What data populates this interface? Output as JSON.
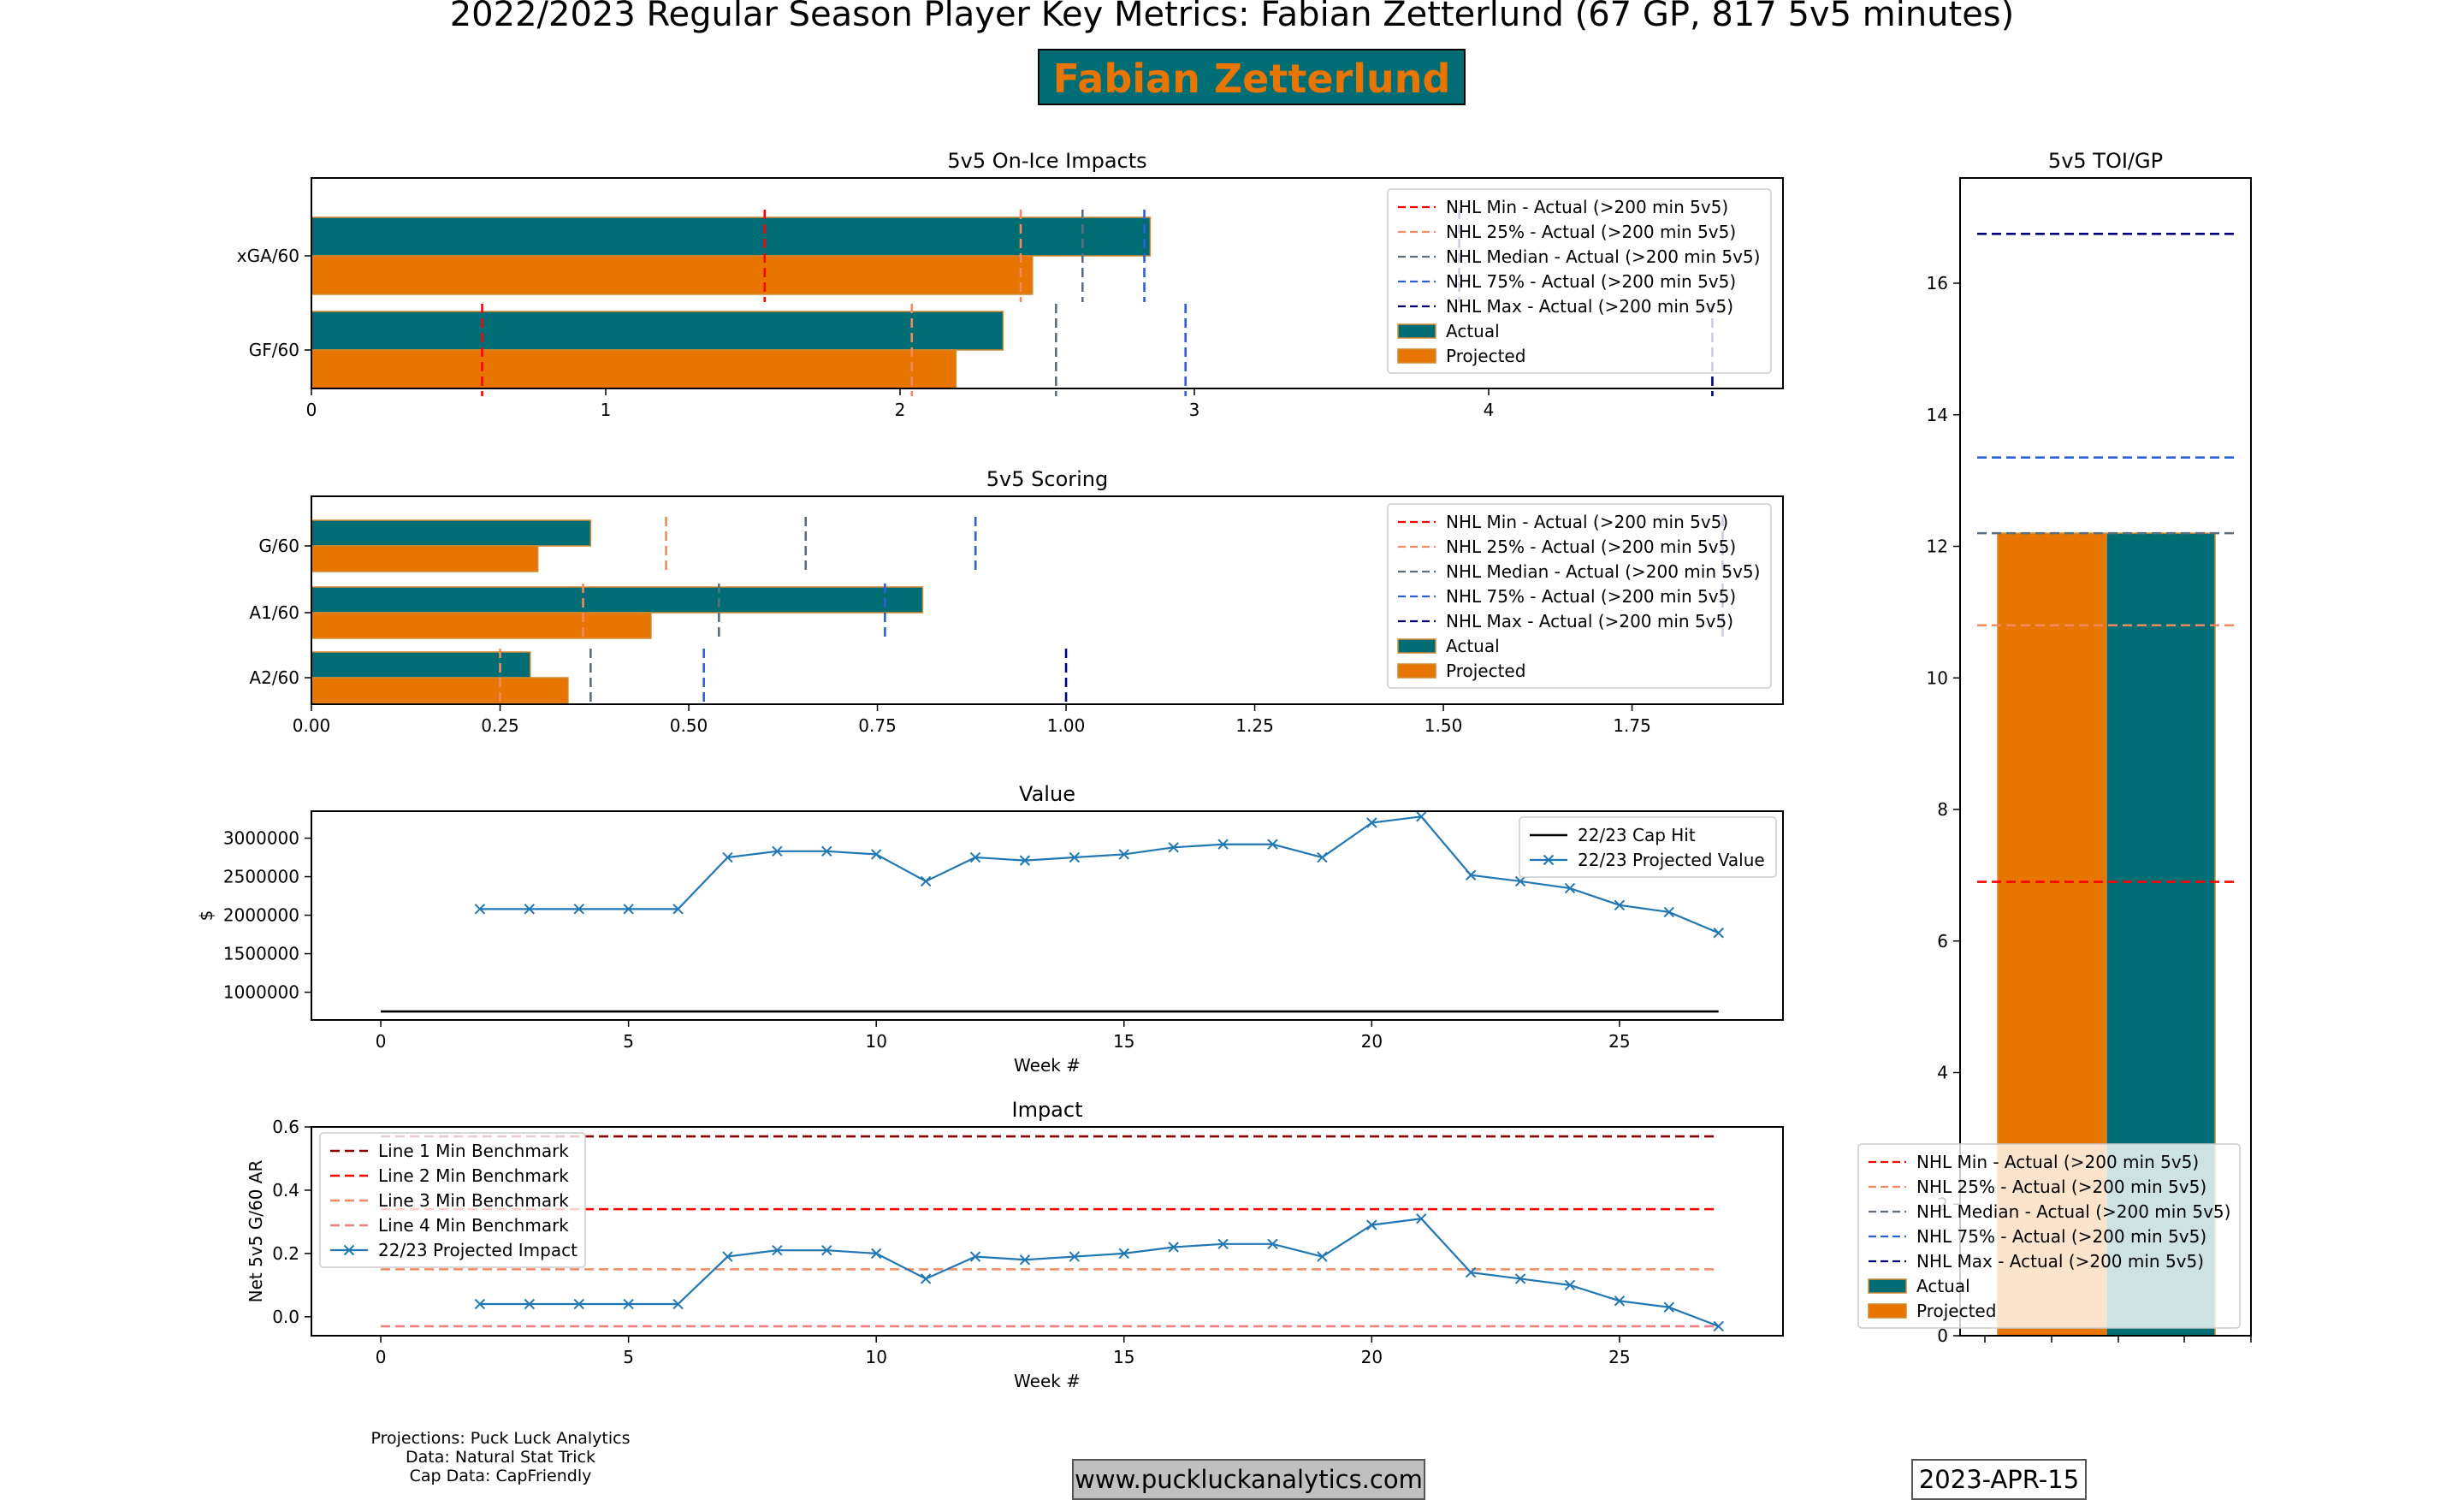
{
  "header": {
    "title": "2022/2023 Regular Season Player Key Metrics: Fabian Zetterlund (67 GP, 817 5v5 minutes)",
    "player_name": "Fabian Zetterlund"
  },
  "footer": {
    "credits": [
      "Projections: Puck Luck Analytics",
      "Data: Natural Stat Trick",
      "Cap Data: CapFriendly"
    ],
    "website": "www.puckluckanalytics.com",
    "date": "2023-APR-15"
  },
  "colors": {
    "actual": "#006d75",
    "projected": "#e87500",
    "bar_edge": "#d08a30",
    "nhl_min": "#ff0000",
    "nhl_25": "#f4895f",
    "nhl_median": "#5d6d7e",
    "nhl_75": "#2c5fdc",
    "nhl_max": "#00007a",
    "projection_line": "#1f77b4",
    "cap_hit": "#000000",
    "line1": "#8b0000",
    "line2": "#ff0000",
    "line3": "#f4895f",
    "line4": "#f08080"
  },
  "chart_data": [
    {
      "id": "onice",
      "type": "bar",
      "orientation": "horizontal",
      "title": "5v5 On-Ice Impacts",
      "categories": [
        "xGA/60",
        "GF/60"
      ],
      "series": [
        {
          "name": "Actual",
          "values": [
            2.85,
            2.35
          ]
        },
        {
          "name": "Projected",
          "values": [
            2.45,
            2.19
          ]
        }
      ],
      "benchmarks": [
        {
          "name": "NHL Min - Actual (>200 min 5v5)",
          "values": [
            1.54,
            0.58
          ]
        },
        {
          "name": "NHL 25% - Actual (>200 min 5v5)",
          "values": [
            2.41,
            2.04
          ]
        },
        {
          "name": "NHL Median - Actual (>200 min 5v5)",
          "values": [
            2.62,
            2.53
          ]
        },
        {
          "name": "NHL 75% - Actual (>200 min 5v5)",
          "values": [
            2.83,
            2.97
          ]
        },
        {
          "name": "NHL Max - Actual (>200 min 5v5)",
          "values": [
            3.9,
            4.76
          ]
        }
      ],
      "xlim": [
        0,
        5
      ],
      "xticks": [
        "0",
        "1",
        "2",
        "3",
        "4"
      ],
      "xtick_values": [
        0,
        1,
        2,
        3,
        4
      ],
      "legend": "upper right"
    },
    {
      "id": "scoring",
      "type": "bar",
      "orientation": "horizontal",
      "title": "5v5 Scoring",
      "categories": [
        "G/60",
        "A1/60",
        "A2/60"
      ],
      "series": [
        {
          "name": "Actual",
          "values": [
            0.37,
            0.81,
            0.29
          ]
        },
        {
          "name": "Projected",
          "values": [
            0.3,
            0.45,
            0.34
          ]
        }
      ],
      "benchmarks": [
        {
          "name": "NHL Min - Actual (>200 min 5v5)",
          "values": [
            0.0,
            0.0,
            0.0
          ]
        },
        {
          "name": "NHL 25% - Actual (>200 min 5v5)",
          "values": [
            0.47,
            0.36,
            0.25
          ]
        },
        {
          "name": "NHL Median - Actual (>200 min 5v5)",
          "values": [
            0.655,
            0.54,
            0.37
          ]
        },
        {
          "name": "NHL 75% - Actual (>200 min 5v5)",
          "values": [
            0.88,
            0.76,
            0.52
          ]
        },
        {
          "name": "NHL Max - Actual (>200 min 5v5)",
          "values": [
            1.87,
            1.87,
            1.0
          ]
        }
      ],
      "xlim": [
        0,
        1.95
      ],
      "xticks": [
        "0.00",
        "0.25",
        "0.50",
        "0.75",
        "1.00",
        "1.25",
        "1.50",
        "1.75"
      ],
      "xtick_values": [
        0,
        0.25,
        0.5,
        0.75,
        1.0,
        1.25,
        1.5,
        1.75
      ],
      "legend": "upper right"
    },
    {
      "id": "value",
      "type": "line",
      "title": "Value",
      "xlabel": "Week #",
      "ylabel": "$",
      "x": [
        2,
        3,
        4,
        5,
        6,
        7,
        8,
        9,
        10,
        11,
        12,
        13,
        14,
        15,
        16,
        17,
        18,
        19,
        20,
        21,
        22,
        23,
        24,
        25,
        26,
        27
      ],
      "series": [
        {
          "name": "22/23 Cap Hit",
          "x": [
            0,
            27
          ],
          "values": [
            750000,
            750000
          ]
        },
        {
          "name": "22/23 Projected Value",
          "values": [
            2080000,
            2080000,
            2080000,
            2080000,
            2080000,
            2750000,
            2830000,
            2830000,
            2790000,
            2440000,
            2750000,
            2710000,
            2750000,
            2790000,
            2880000,
            2920000,
            2920000,
            2750000,
            3200000,
            3280000,
            2520000,
            2440000,
            2350000,
            2130000,
            2040000,
            1770000
          ]
        }
      ],
      "xlim": [
        -1.4,
        28.3
      ],
      "ylim": [
        640000,
        3350000
      ],
      "xticks": [
        "0",
        "5",
        "10",
        "15",
        "20",
        "25"
      ],
      "xtick_values": [
        0,
        5,
        10,
        15,
        20,
        25
      ],
      "yticks": [
        "1000000",
        "1500000",
        "2000000",
        "2500000",
        "3000000"
      ],
      "ytick_values": [
        1000000,
        1500000,
        2000000,
        2500000,
        3000000
      ],
      "legend": "upper right"
    },
    {
      "id": "impact",
      "type": "line",
      "title": "Impact",
      "xlabel": "Week #",
      "ylabel": "Net 5v5 G/60 AR",
      "x": [
        2,
        3,
        4,
        5,
        6,
        7,
        8,
        9,
        10,
        11,
        12,
        13,
        14,
        15,
        16,
        17,
        18,
        19,
        20,
        21,
        22,
        23,
        24,
        25,
        26,
        27
      ],
      "series": [
        {
          "name": "Line 1 Min Benchmark",
          "x": [
            0,
            27
          ],
          "values": [
            0.57,
            0.57
          ]
        },
        {
          "name": "Line 2 Min Benchmark",
          "x": [
            0,
            27
          ],
          "values": [
            0.34,
            0.34
          ]
        },
        {
          "name": "Line 3 Min Benchmark",
          "x": [
            0,
            27
          ],
          "values": [
            0.15,
            0.15
          ]
        },
        {
          "name": "Line 4 Min Benchmark",
          "x": [
            0,
            27
          ],
          "values": [
            -0.03,
            -0.03
          ]
        },
        {
          "name": "22/23 Projected Impact",
          "values": [
            0.04,
            0.04,
            0.04,
            0.04,
            0.04,
            0.19,
            0.21,
            0.21,
            0.2,
            0.12,
            0.19,
            0.18,
            0.19,
            0.2,
            0.22,
            0.23,
            0.23,
            0.19,
            0.29,
            0.31,
            0.14,
            0.12,
            0.1,
            0.05,
            0.03,
            -0.03
          ]
        }
      ],
      "xlim": [
        -1.4,
        28.3
      ],
      "ylim": [
        -0.06,
        0.6
      ],
      "xticks": [
        "0",
        "5",
        "10",
        "15",
        "20",
        "25"
      ],
      "xtick_values": [
        0,
        5,
        10,
        15,
        20,
        25
      ],
      "yticks": [
        "0.0",
        "0.2",
        "0.4",
        "0.6"
      ],
      "ytick_values": [
        0,
        0.2,
        0.4,
        0.6
      ],
      "legend": "upper left"
    },
    {
      "id": "toi",
      "type": "bar",
      "title": "5v5 TOI/GP",
      "series": [
        {
          "name": "Projected",
          "values": [
            12.2
          ]
        },
        {
          "name": "Actual",
          "values": [
            12.2
          ]
        }
      ],
      "benchmarks": [
        {
          "name": "NHL Min - Actual (>200 min 5v5)",
          "values": [
            6.9
          ]
        },
        {
          "name": "NHL 25% - Actual (>200 min 5v5)",
          "values": [
            10.8
          ]
        },
        {
          "name": "NHL Median - Actual (>200 min 5v5)",
          "values": [
            12.2
          ]
        },
        {
          "name": "NHL 75% - Actual (>200 min 5v5)",
          "values": [
            13.35
          ]
        },
        {
          "name": "NHL Max - Actual (>200 min 5v5)",
          "values": [
            16.75
          ]
        }
      ],
      "ylim": [
        0,
        17.6
      ],
      "yticks": [
        "0",
        "2",
        "4",
        "6",
        "8",
        "10",
        "12",
        "14",
        "16"
      ],
      "ytick_values": [
        0,
        2,
        4,
        6,
        8,
        10,
        12,
        14,
        16
      ],
      "legend": "lower center"
    }
  ]
}
